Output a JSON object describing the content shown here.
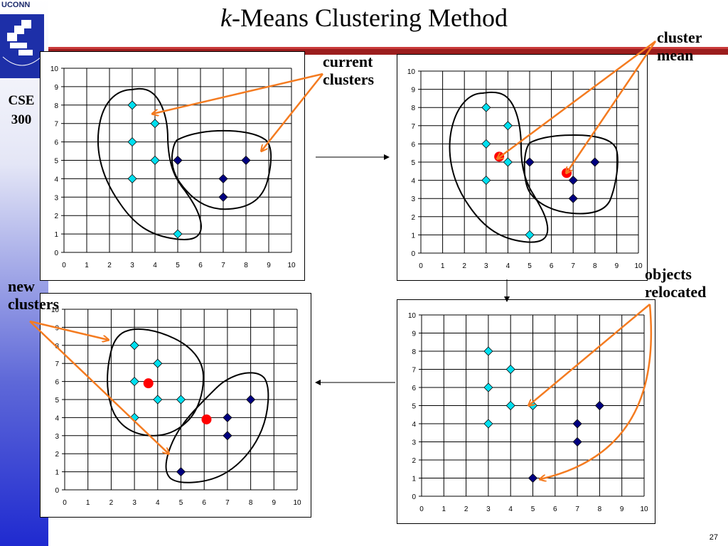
{
  "header": {
    "org": "UCONN",
    "course": [
      "CSE",
      "300"
    ],
    "title_italic": "k",
    "title_rest": "-Means Clustering Method",
    "page_number": "27"
  },
  "annotations": {
    "current_clusters": [
      "current",
      "clusters"
    ],
    "cluster_mean": [
      "cluster",
      "mean"
    ],
    "objects_relocated": [
      "objects",
      "relocated"
    ],
    "new_clusters": [
      "new",
      "clusters"
    ]
  },
  "colors": {
    "light_point": "#00e0f0",
    "dark_point": "#000080",
    "mean": "#ff0000",
    "arrow": "#f47b20",
    "rule": "#9b1d1d"
  },
  "chart_data": [
    {
      "type": "scatter",
      "panel": "top-left",
      "xlim": [
        0,
        10
      ],
      "ylim": [
        0,
        10
      ],
      "grid": true,
      "xticks": [
        0,
        1,
        2,
        3,
        4,
        5,
        6,
        7,
        8,
        9,
        10
      ],
      "yticks": [
        0,
        1,
        2,
        3,
        4,
        5,
        6,
        7,
        8,
        9,
        10
      ],
      "series": [
        {
          "values": [
            [
              3,
              8
            ],
            [
              4,
              7
            ],
            [
              3,
              6
            ],
            [
              4,
              5
            ],
            [
              3,
              4
            ],
            [
              5,
              1
            ]
          ],
          "color": "light"
        },
        {
          "values": [
            [
              5,
              5
            ],
            [
              8,
              5
            ],
            [
              7,
              4
            ],
            [
              7,
              3
            ]
          ],
          "color": "dark"
        }
      ],
      "means": []
    },
    {
      "type": "scatter",
      "panel": "top-right",
      "xlim": [
        0,
        10
      ],
      "ylim": [
        0,
        10
      ],
      "grid": true,
      "xticks": [
        0,
        1,
        2,
        3,
        4,
        5,
        6,
        7,
        8,
        9,
        10
      ],
      "yticks": [
        0,
        1,
        2,
        3,
        4,
        5,
        6,
        7,
        8,
        9,
        10
      ],
      "series": [
        {
          "values": [
            [
              3,
              8
            ],
            [
              4,
              7
            ],
            [
              3,
              6
            ],
            [
              4,
              5
            ],
            [
              3,
              4
            ],
            [
              5,
              1
            ]
          ],
          "color": "light"
        },
        {
          "values": [
            [
              5,
              5
            ],
            [
              8,
              5
            ],
            [
              7,
              4
            ],
            [
              7,
              3
            ]
          ],
          "color": "dark"
        }
      ],
      "means": [
        [
          3.6,
          5.3
        ],
        [
          6.7,
          4.4
        ]
      ]
    },
    {
      "type": "scatter",
      "panel": "bottom-right",
      "xlim": [
        0,
        10
      ],
      "ylim": [
        0,
        10
      ],
      "grid": true,
      "xticks": [
        0,
        1,
        2,
        3,
        4,
        5,
        6,
        7,
        8,
        9,
        10
      ],
      "yticks": [
        0,
        1,
        2,
        3,
        4,
        5,
        6,
        7,
        8,
        9,
        10
      ],
      "series": [
        {
          "values": [
            [
              3,
              8
            ],
            [
              4,
              7
            ],
            [
              3,
              6
            ],
            [
              4,
              5
            ],
            [
              5,
              5
            ],
            [
              3,
              4
            ]
          ],
          "color": "light"
        },
        {
          "values": [
            [
              8,
              5
            ],
            [
              7,
              4
            ],
            [
              7,
              3
            ],
            [
              5,
              1
            ]
          ],
          "color": "dark"
        }
      ],
      "means": []
    },
    {
      "type": "scatter",
      "panel": "bottom-left",
      "xlim": [
        0,
        10
      ],
      "ylim": [
        0,
        10
      ],
      "grid": true,
      "xticks": [
        0,
        1,
        2,
        3,
        4,
        5,
        6,
        7,
        8,
        9,
        10
      ],
      "yticks": [
        0,
        1,
        2,
        3,
        4,
        5,
        6,
        7,
        8,
        9,
        10
      ],
      "series": [
        {
          "values": [
            [
              3,
              8
            ],
            [
              4,
              7
            ],
            [
              3,
              6
            ],
            [
              4,
              5
            ],
            [
              5,
              5
            ],
            [
              3,
              4
            ]
          ],
          "color": "light"
        },
        {
          "values": [
            [
              8,
              5
            ],
            [
              7,
              4
            ],
            [
              7,
              3
            ],
            [
              5,
              1
            ]
          ],
          "color": "dark"
        }
      ],
      "means": [
        [
          3.6,
          5.9
        ],
        [
          6.1,
          3.9
        ]
      ]
    }
  ]
}
